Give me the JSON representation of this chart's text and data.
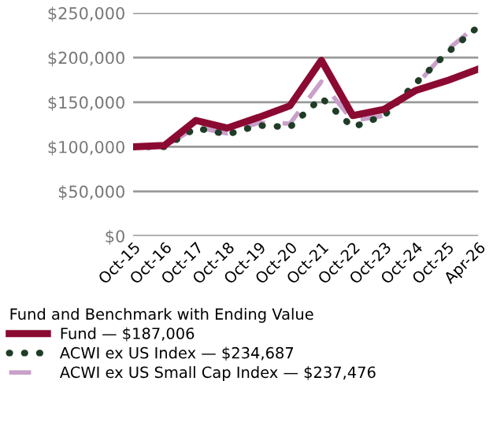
{
  "chart_data": {
    "type": "line",
    "legend_title": "Fund and Benchmark with Ending Value",
    "categories": [
      "Oct-15",
      "Oct-16",
      "Oct-17",
      "Oct-18",
      "Oct-19",
      "Oct-20",
      "Oct-21",
      "Oct-22",
      "Oct-23",
      "Oct-24",
      "Oct-25",
      "Apr-26"
    ],
    "series": [
      {
        "name": "Fund — $187,006",
        "color": "#8b0a32",
        "line_style": "solid",
        "values": [
          100000,
          101500,
          129500,
          121000,
          133000,
          146000,
          197000,
          135000,
          142000,
          163000,
          174000,
          187006
        ]
      },
      {
        "name": "ACWI ex US Index — $234,687",
        "color": "#1f3d26",
        "line_style": "dotted",
        "values": [
          100000,
          100000,
          121000,
          114000,
          124000,
          122000,
          155000,
          122000,
          135000,
          171000,
          205000,
          234687
        ]
      },
      {
        "name": "ACWI ex US Small Cap Index — $237,476",
        "color": "#c9a0c9",
        "line_style": "dashed",
        "values": [
          100000,
          100000,
          122000,
          115000,
          127000,
          126000,
          173000,
          129000,
          135000,
          168000,
          208000,
          237476
        ]
      }
    ],
    "ylim": [
      0,
      250000
    ],
    "yticks": [
      {
        "value": 0,
        "label": "$0"
      },
      {
        "value": 50000,
        "label": "$50,000"
      },
      {
        "value": 100000,
        "label": "$100,000"
      },
      {
        "value": 150000,
        "label": "$150,000"
      },
      {
        "value": 200000,
        "label": "$200,000"
      },
      {
        "value": 250000,
        "label": "$250,000"
      }
    ],
    "grid": "y",
    "legend": "bottom"
  }
}
